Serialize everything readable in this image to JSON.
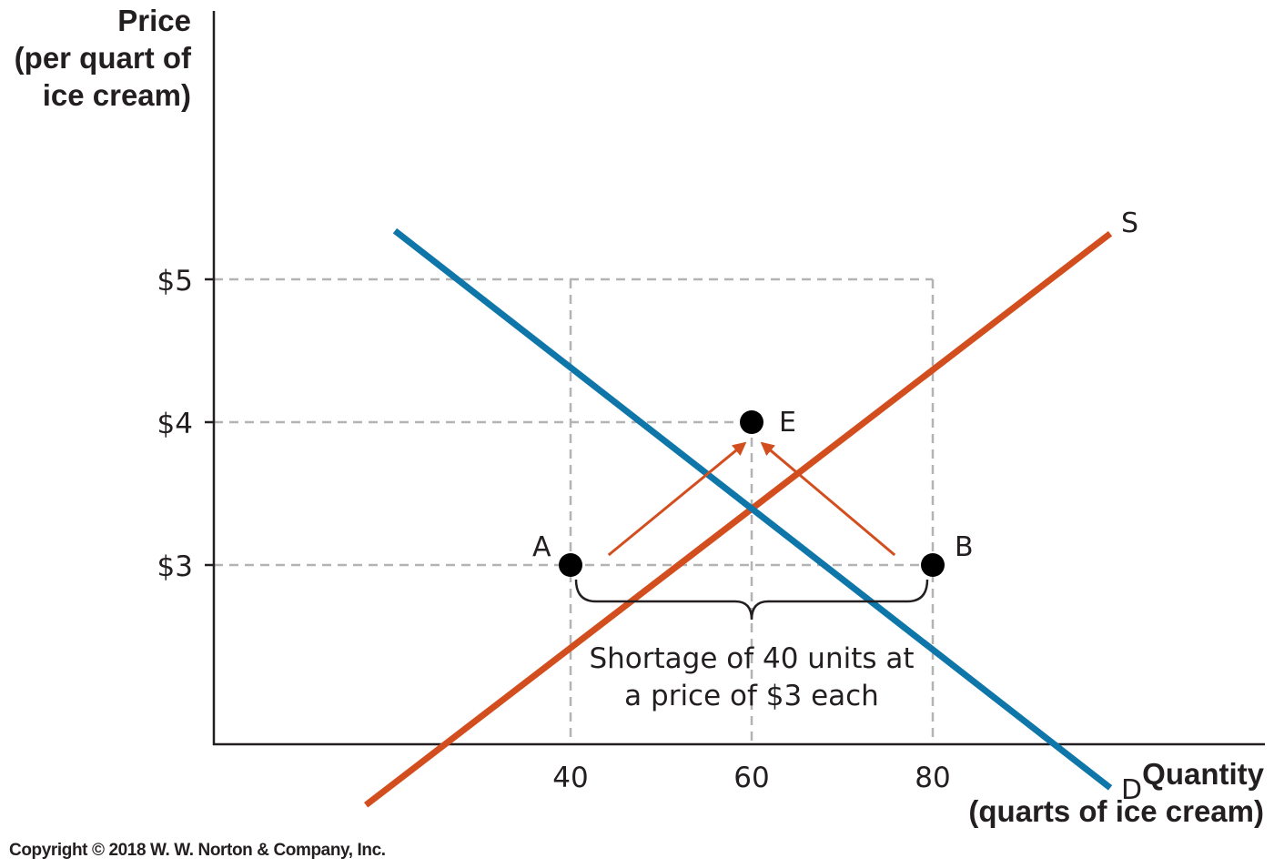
{
  "chart_data": {
    "type": "line",
    "ylabel": [
      "Price",
      "(per quart of",
      "ice cream)"
    ],
    "xlabel": [
      "Quantity",
      "(quarts of ice cream)"
    ],
    "x_ticks": [
      {
        "value": 40,
        "label": "40"
      },
      {
        "value": 60,
        "label": "60"
      },
      {
        "value": 80,
        "label": "80"
      }
    ],
    "y_ticks": [
      {
        "value": 3,
        "label": "$3"
      },
      {
        "value": 4,
        "label": "$4"
      },
      {
        "value": 5,
        "label": "$5"
      }
    ],
    "xlim": [
      0,
      118
    ],
    "ylim": [
      1.25,
      6.8
    ],
    "grid": false,
    "series": [
      {
        "name": "S",
        "color": "#d34e1e",
        "x": [
          17.4,
          99.6
        ],
        "y": [
          1.32,
          5.32
        ]
      },
      {
        "name": "D",
        "color": "#0e76a8",
        "x": [
          20.6,
          99.6
        ],
        "y": [
          5.34,
          1.44
        ]
      }
    ],
    "guides": [
      {
        "from": [
          0,
          5
        ],
        "to": [
          80,
          5
        ]
      },
      {
        "from": [
          0,
          4
        ],
        "to": [
          60,
          4
        ]
      },
      {
        "from": [
          0,
          3
        ],
        "to": [
          80,
          3
        ]
      },
      {
        "from": [
          40,
          5
        ],
        "to": [
          40,
          1.25
        ]
      },
      {
        "from": [
          60,
          4
        ],
        "to": [
          60,
          1.25
        ]
      },
      {
        "from": [
          80,
          5
        ],
        "to": [
          80,
          1.25
        ]
      }
    ],
    "points": [
      {
        "label": "E",
        "x": 60,
        "y": 4
      },
      {
        "label": "A",
        "x": 40,
        "y": 3
      },
      {
        "label": "B",
        "x": 80,
        "y": 3
      }
    ],
    "arrows": [
      {
        "from": [
          44.2,
          3.07
        ],
        "to": [
          59.2,
          3.85
        ]
      },
      {
        "from": [
          75.8,
          3.07
        ],
        "to": [
          61.2,
          3.85
        ]
      }
    ],
    "annotation": {
      "lines": [
        "Shortage of 40 units at",
        "a price of $3 each"
      ],
      "span": [
        40,
        80
      ]
    },
    "colors": {
      "supply": "#d34e1e",
      "demand": "#0e76a8",
      "axis": "#231f20",
      "guide": "#b3b3b3",
      "point": "#000000"
    }
  },
  "footer": {
    "copyright": "Copyright © 2018 W. W. Norton & Company, Inc."
  }
}
